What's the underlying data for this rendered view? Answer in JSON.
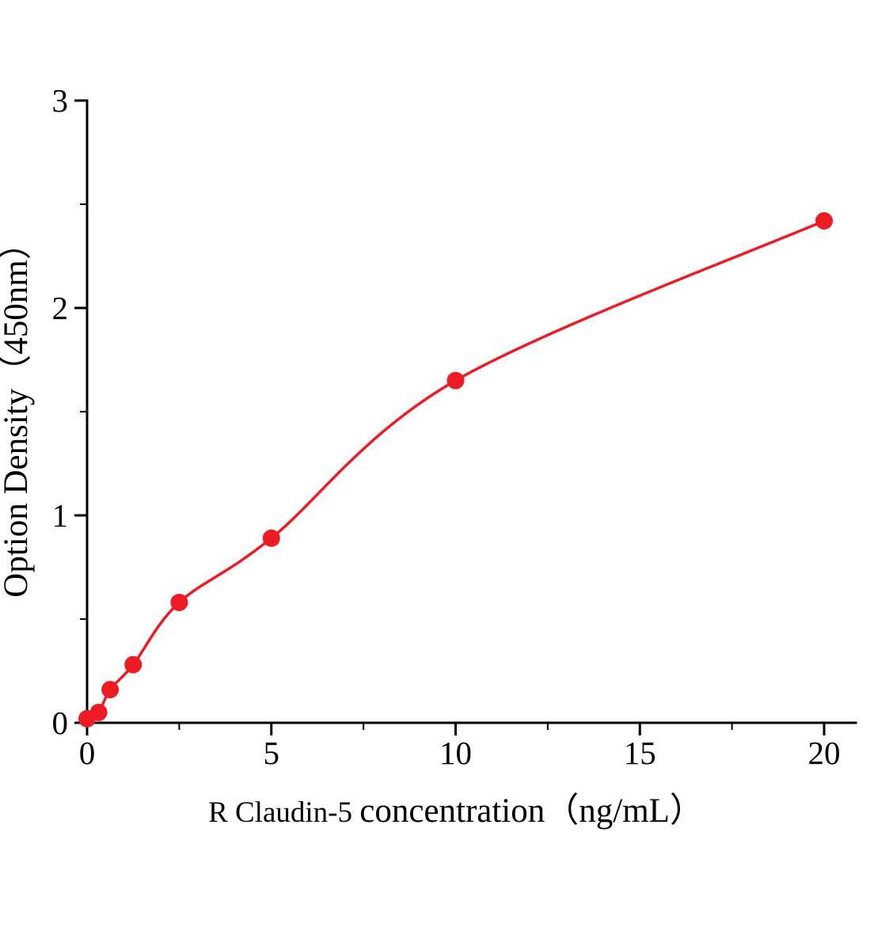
{
  "page": {
    "background": "#ffffff"
  },
  "chart_data": {
    "type": "scatter",
    "title": "",
    "xlabel": "R Claudin-5 concentration（ng/mL）",
    "xlabel_parts": [
      {
        "text": "R Claudin-5 "
      },
      {
        "text": "concentration（ng/mL）"
      }
    ],
    "ylabel": "Option Density（450nm）",
    "x": [
      0,
      0.313,
      0.625,
      1.25,
      2.5,
      5,
      10,
      20
    ],
    "y": [
      0.02,
      0.05,
      0.16,
      0.28,
      0.58,
      0.89,
      1.65,
      2.42
    ],
    "fit": "smooth saturating standard curve through all points",
    "xlim": [
      0,
      20.9
    ],
    "ylim": [
      0,
      3
    ],
    "x_major_ticks": [
      0,
      5,
      10,
      15,
      20
    ],
    "x_tick_labels": [
      "0",
      "5",
      "10",
      "15",
      "20"
    ],
    "x_minor_ticks": [
      2.5,
      7.5,
      12.5,
      17.5
    ],
    "y_major_ticks": [
      0,
      1,
      2,
      3
    ],
    "y_tick_labels": [
      "0",
      "1",
      "2",
      "3"
    ],
    "y_minor_ticks": [
      0.5,
      1.5,
      2.5
    ],
    "grid": false,
    "legend": null,
    "line_color": "#ed1c24",
    "point_color": "#ed1c24",
    "axis_color": "#000000"
  }
}
